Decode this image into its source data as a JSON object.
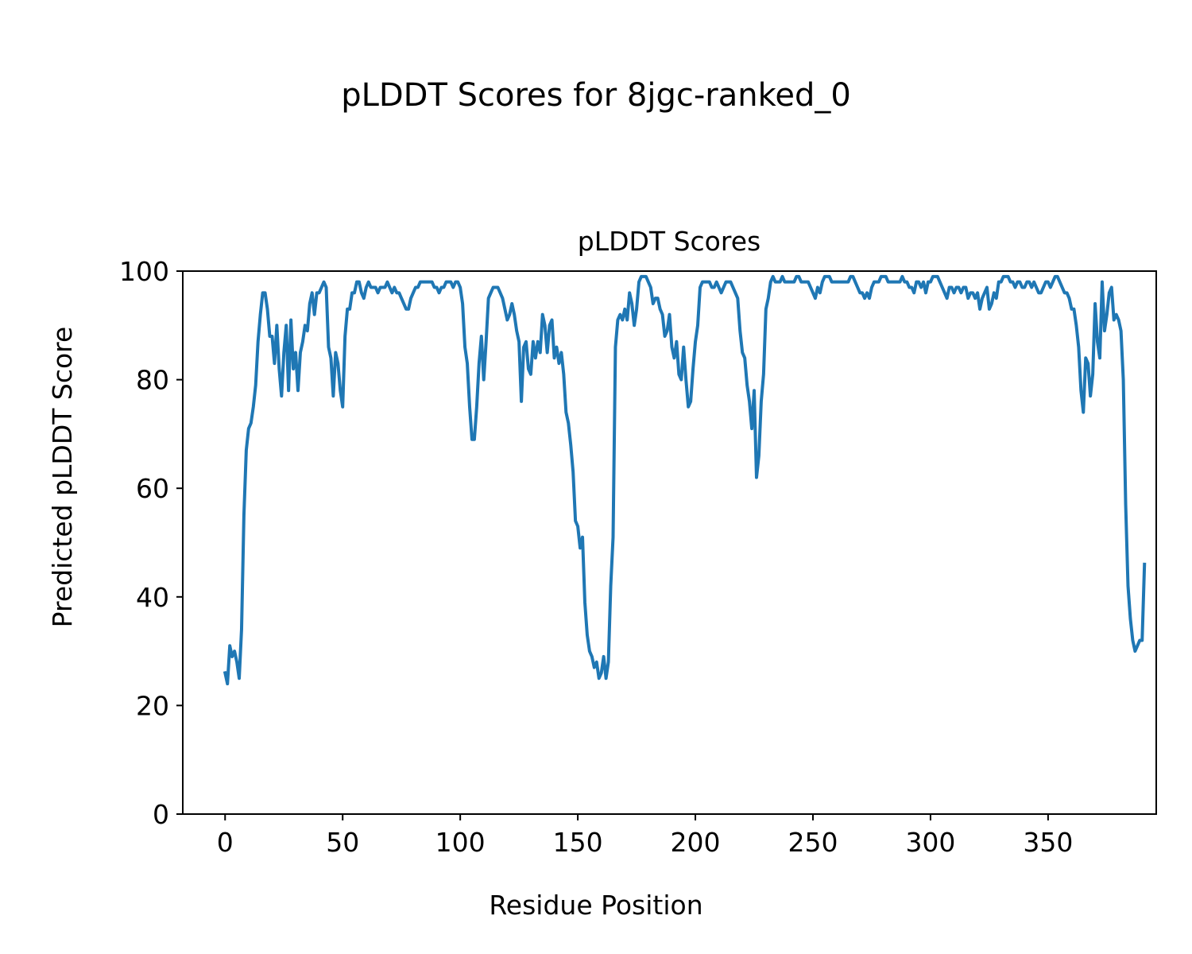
{
  "figure": {
    "suptitle": "pLDDT Scores for 8jgc-ranked_0"
  },
  "chart_data": {
    "type": "line",
    "title": "pLDDT Scores",
    "xlabel": "Residue Position",
    "ylabel": "Predicted pLDDT Score",
    "xlim": [
      -18,
      396
    ],
    "ylim": [
      0,
      100
    ],
    "xticks": [
      0,
      50,
      100,
      150,
      200,
      250,
      300,
      350
    ],
    "yticks": [
      0,
      20,
      40,
      60,
      80,
      100
    ],
    "grid": false,
    "legend": "none",
    "series": [
      {
        "color": "#1f77b4",
        "x_start": 0,
        "values": [
          26,
          24,
          31,
          29,
          30,
          28,
          25,
          34,
          55,
          67,
          71,
          72,
          75,
          79,
          87,
          92,
          96,
          96,
          93,
          88,
          88,
          83,
          90,
          82,
          77,
          85,
          90,
          78,
          91,
          82,
          85,
          78,
          85,
          87,
          90,
          89,
          94,
          96,
          92,
          96,
          96,
          97,
          98,
          97,
          86,
          84,
          77,
          85,
          83,
          78,
          75,
          88,
          93,
          93,
          96,
          96,
          98,
          98,
          96,
          95,
          97,
          98,
          97,
          97,
          97,
          96,
          97,
          97,
          97,
          98,
          97,
          96,
          97,
          96,
          96,
          95,
          94,
          93,
          93,
          95,
          96,
          97,
          97,
          98,
          98,
          98,
          98,
          98,
          98,
          97,
          97,
          96,
          97,
          97,
          98,
          98,
          98,
          97,
          98,
          98,
          97,
          94,
          86,
          83,
          75,
          69,
          69,
          75,
          83,
          88,
          80,
          87,
          95,
          96,
          97,
          97,
          97,
          96,
          95,
          93,
          91,
          92,
          94,
          92,
          89,
          87,
          76,
          86,
          87,
          82,
          81,
          87,
          84,
          87,
          85,
          92,
          90,
          85,
          90,
          91,
          84,
          86,
          83,
          85,
          81,
          74,
          72,
          68,
          63,
          54,
          53,
          49,
          51,
          39,
          33,
          30,
          29,
          27,
          28,
          25,
          26,
          29,
          25,
          28,
          42,
          51,
          86,
          91,
          92,
          91,
          93,
          91,
          96,
          94,
          90,
          93,
          98,
          99,
          99,
          99,
          98,
          97,
          94,
          95,
          95,
          93,
          92,
          88,
          89,
          92,
          86,
          84,
          87,
          81,
          80,
          86,
          80,
          75,
          76,
          82,
          87,
          90,
          97,
          98,
          98,
          98,
          98,
          97,
          97,
          98,
          97,
          96,
          97,
          98,
          98,
          98,
          97,
          96,
          95,
          89,
          85,
          84,
          79,
          76,
          71,
          78,
          62,
          66,
          76,
          81,
          93,
          95,
          98,
          99,
          98,
          98,
          98,
          99,
          98,
          98,
          98,
          98,
          98,
          99,
          99,
          98,
          98,
          98,
          98,
          97,
          96,
          95,
          97,
          96,
          98,
          99,
          99,
          99,
          98,
          98,
          98,
          98,
          98,
          98,
          98,
          98,
          99,
          99,
          98,
          97,
          96,
          96,
          95,
          96,
          95,
          97,
          98,
          98,
          98,
          99,
          99,
          99,
          98,
          98,
          98,
          98,
          98,
          98,
          99,
          98,
          98,
          97,
          97,
          96,
          98,
          98,
          97,
          98,
          96,
          98,
          98,
          99,
          99,
          99,
          98,
          97,
          96,
          95,
          97,
          97,
          96,
          97,
          97,
          96,
          97,
          97,
          95,
          96,
          96,
          95,
          96,
          93,
          95,
          96,
          97,
          93,
          94,
          96,
          95,
          98,
          98,
          99,
          99,
          99,
          98,
          98,
          97,
          98,
          98,
          97,
          97,
          98,
          98,
          97,
          98,
          97,
          96,
          96,
          97,
          98,
          98,
          97,
          98,
          99,
          99,
          98,
          97,
          96,
          96,
          95,
          93,
          93,
          90,
          86,
          78,
          74,
          84,
          83,
          77,
          81,
          94,
          87,
          84,
          98,
          89,
          92,
          96,
          97,
          91,
          92,
          91,
          89,
          80,
          57,
          42,
          36,
          32,
          30,
          31,
          32,
          32,
          46
        ]
      }
    ]
  }
}
